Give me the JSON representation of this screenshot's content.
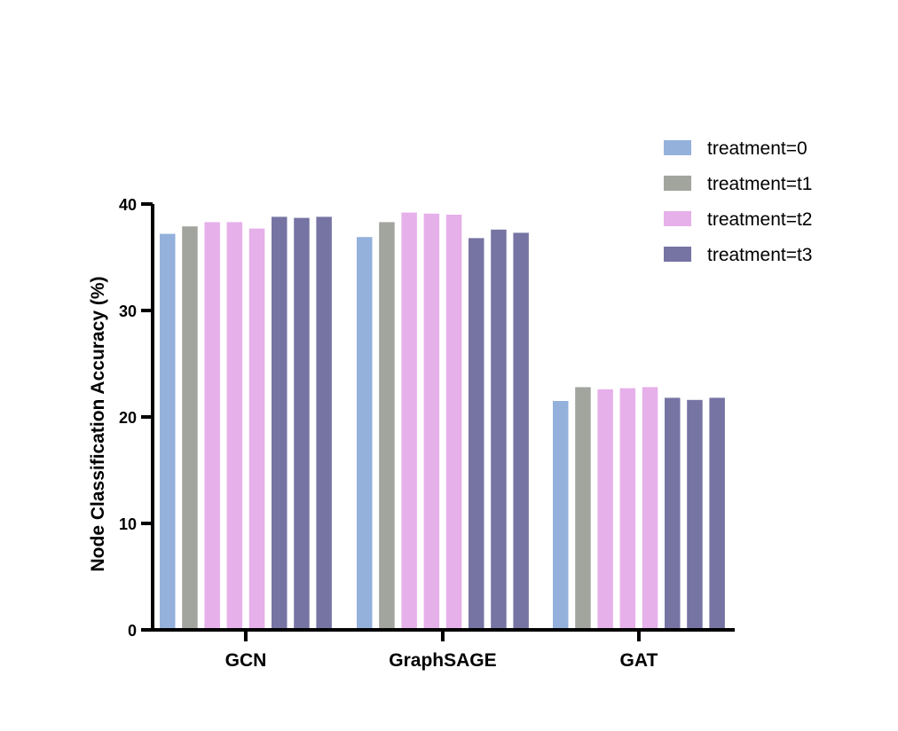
{
  "chart_data": {
    "type": "bar",
    "title": "",
    "xlabel": "",
    "ylabel": "Node Classification Accuracy  (%)",
    "ylim": [
      0,
      40
    ],
    "yticks": [
      0,
      10,
      20,
      30,
      40
    ],
    "categories": [
      "GCN",
      "GraphSAGE",
      "GAT"
    ],
    "legend": [
      {
        "name": "treatment=0",
        "color": "#94b1dc"
      },
      {
        "name": "treatment=t1",
        "color": "#a2a59e"
      },
      {
        "name": "treatment=t2",
        "color": "#e6b0ea"
      },
      {
        "name": "treatment=t3",
        "color": "#7674a3"
      }
    ],
    "groups": [
      {
        "category": "GCN",
        "bars": [
          {
            "series": "treatment=0",
            "value": 37.2
          },
          {
            "series": "treatment=t1",
            "value": 37.9
          },
          {
            "series": "treatment=t2",
            "value": 38.3
          },
          {
            "series": "treatment=t2",
            "value": 38.3
          },
          {
            "series": "treatment=t2",
            "value": 37.7
          },
          {
            "series": "treatment=t3",
            "value": 38.8
          },
          {
            "series": "treatment=t3",
            "value": 38.7
          },
          {
            "series": "treatment=t3",
            "value": 38.8
          }
        ]
      },
      {
        "category": "GraphSAGE",
        "bars": [
          {
            "series": "treatment=0",
            "value": 36.9
          },
          {
            "series": "treatment=t1",
            "value": 38.3
          },
          {
            "series": "treatment=t2",
            "value": 39.2
          },
          {
            "series": "treatment=t2",
            "value": 39.1
          },
          {
            "series": "treatment=t2",
            "value": 39.0
          },
          {
            "series": "treatment=t3",
            "value": 36.8
          },
          {
            "series": "treatment=t3",
            "value": 37.6
          },
          {
            "series": "treatment=t3",
            "value": 37.3
          }
        ]
      },
      {
        "category": "GAT",
        "bars": [
          {
            "series": "treatment=0",
            "value": 21.5
          },
          {
            "series": "treatment=t1",
            "value": 22.8
          },
          {
            "series": "treatment=t2",
            "value": 22.6
          },
          {
            "series": "treatment=t2",
            "value": 22.7
          },
          {
            "series": "treatment=t2",
            "value": 22.8
          },
          {
            "series": "treatment=t3",
            "value": 21.8
          },
          {
            "series": "treatment=t3",
            "value": 21.6
          },
          {
            "series": "treatment=t3",
            "value": 21.8
          }
        ]
      }
    ]
  }
}
